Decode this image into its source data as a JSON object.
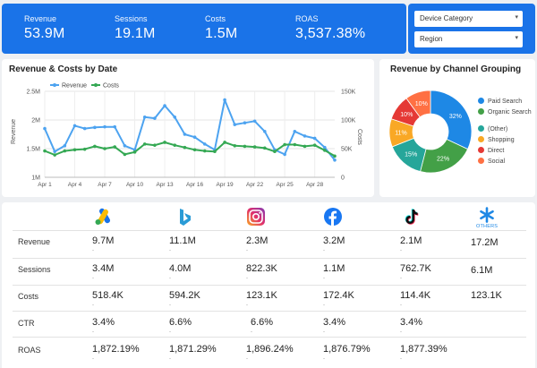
{
  "kpis": [
    {
      "label": "Revenue",
      "value": "53.9M"
    },
    {
      "label": "Sessions",
      "value": "19.1M"
    },
    {
      "label": "Costs",
      "value": "1.5M"
    },
    {
      "label": "ROAS",
      "value": "3,537.38%"
    }
  ],
  "filters": {
    "device_category": "Device Category",
    "region": "Region"
  },
  "colors": {
    "kpi_bar": "#1a73e8",
    "revenue_line": "#4da3f0",
    "costs_line": "#34a853",
    "paid_search": "#1e88e5",
    "organic_search": "#43a047",
    "other": "#26a69a",
    "shopping": "#f9a825",
    "direct": "#e53935",
    "social": "#ff7043"
  },
  "line_chart": {
    "title": "Revenue & Costs by Date",
    "legend": [
      "Revenue",
      "Costs"
    ],
    "y_left_label": "Revenue",
    "y_right_label": "Costs",
    "y_left_ticks": [
      "2.5M",
      "2M",
      "1.5M",
      "1M"
    ],
    "y_right_ticks": [
      "150K",
      "100K",
      "50K",
      "0"
    ],
    "x_ticks": [
      "Apr 1",
      "Apr 4",
      "Apr 7",
      "Apr 10",
      "Apr 13",
      "Apr 16",
      "Apr 19",
      "Apr 22",
      "Apr 25",
      "Apr 28"
    ]
  },
  "pie_chart": {
    "title": "Revenue by Channel Grouping",
    "legend": [
      "Paid Search",
      "Organic Search",
      "(Other)",
      "Shopping",
      "Direct",
      "Social"
    ]
  },
  "chart_data": [
    {
      "type": "line",
      "title": "Revenue & Costs by Date",
      "x": [
        "Apr 1",
        "Apr 2",
        "Apr 3",
        "Apr 4",
        "Apr 5",
        "Apr 6",
        "Apr 7",
        "Apr 8",
        "Apr 9",
        "Apr 10",
        "Apr 11",
        "Apr 12",
        "Apr 13",
        "Apr 14",
        "Apr 15",
        "Apr 16",
        "Apr 17",
        "Apr 18",
        "Apr 19",
        "Apr 20",
        "Apr 21",
        "Apr 22",
        "Apr 23",
        "Apr 24",
        "Apr 25",
        "Apr 26",
        "Apr 27",
        "Apr 28",
        "Apr 29",
        "Apr 30"
      ],
      "series": [
        {
          "name": "Revenue",
          "axis": "left",
          "values": [
            1850000,
            1450000,
            1550000,
            1900000,
            1850000,
            1870000,
            1880000,
            1880000,
            1550000,
            1480000,
            2050000,
            2030000,
            2250000,
            2050000,
            1750000,
            1700000,
            1580000,
            1480000,
            2350000,
            1920000,
            1950000,
            1980000,
            1800000,
            1480000,
            1400000,
            1800000,
            1720000,
            1680000,
            1520000,
            1300000
          ]
        },
        {
          "name": "Costs",
          "axis": "right",
          "values": [
            46000,
            39000,
            46000,
            48000,
            49000,
            54000,
            50000,
            53000,
            40000,
            44000,
            58000,
            56000,
            61000,
            56000,
            52000,
            48000,
            46000,
            45000,
            61000,
            55000,
            54000,
            53000,
            51000,
            45000,
            57000,
            57000,
            54000,
            56000,
            47000,
            37000
          ]
        }
      ],
      "xlabel": "",
      "ylabel": "Revenue",
      "y2label": "Costs",
      "ylim": [
        1000000,
        2500000
      ],
      "y2lim": [
        0,
        150000
      ],
      "grid": true,
      "legend": "top-left"
    },
    {
      "type": "pie",
      "title": "Revenue by Channel Grouping",
      "categories": [
        "Paid Search",
        "Organic Search",
        "(Other)",
        "Shopping",
        "Direct",
        "Social"
      ],
      "values": [
        32,
        22,
        15,
        11,
        10,
        10
      ],
      "labels": [
        "32%",
        "22%",
        "15%",
        "11%",
        "10%",
        "10%"
      ],
      "donut": true,
      "legend": "right"
    }
  ],
  "platform_table": {
    "platforms": [
      {
        "name": "google-ads",
        "label": ""
      },
      {
        "name": "bing",
        "label": ""
      },
      {
        "name": "instagram",
        "label": ""
      },
      {
        "name": "facebook",
        "label": ""
      },
      {
        "name": "tiktok",
        "label": ""
      },
      {
        "name": "others",
        "label": "OTHERS"
      }
    ],
    "rows": [
      {
        "label": "Revenue",
        "values": [
          "9.7M",
          "11.1M",
          "2.3M",
          "3.2M",
          "2.1M",
          "17.2M"
        ]
      },
      {
        "label": "Sessions",
        "values": [
          "3.4M",
          "4.0M",
          "822.3K",
          "1.1M",
          "762.7K",
          "6.1M"
        ]
      },
      {
        "label": "Costs",
        "values": [
          "518.4K",
          "594.2K",
          "123.1K",
          "172.4K",
          "114.4K",
          "123.1K"
        ]
      },
      {
        "label": "CTR",
        "values": [
          "3.4%",
          "6.6%",
          "6.6%",
          "3.4%",
          "3.4%",
          ""
        ]
      },
      {
        "label": "ROAS",
        "values": [
          "1,872.19%",
          "1,871.29%",
          "1,896.24%",
          "1,876.79%",
          "1,877.39%",
          ""
        ]
      }
    ],
    "sub_mark": "-"
  }
}
